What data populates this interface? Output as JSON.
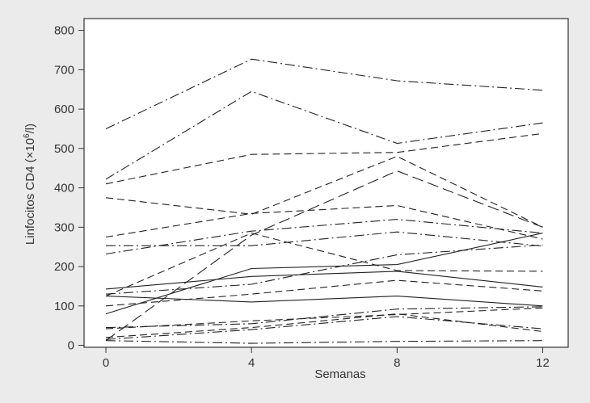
{
  "chart_data": {
    "type": "line",
    "xlabel": "Semanas",
    "ylabel": {
      "prefix": "Linfocitos CD4 (×10",
      "sup": "6",
      "suffix": "/l)"
    },
    "x": [
      0,
      4,
      8,
      12
    ],
    "x_ticks": [
      "0",
      "4",
      "8",
      "12"
    ],
    "y_ticks": [
      "0",
      "100",
      "200",
      "300",
      "400",
      "500",
      "600",
      "700",
      "800"
    ],
    "ylim": [
      -5,
      830
    ],
    "xlim": [
      -0.6,
      12.7
    ],
    "grid": false,
    "legend": "none",
    "series": [
      {
        "values": [
          550,
          727,
          672,
          648
        ],
        "style": "dashdot"
      },
      {
        "values": [
          422,
          645,
          513,
          565
        ],
        "style": "dashdot"
      },
      {
        "values": [
          410,
          485,
          490,
          538
        ],
        "style": "dashed"
      },
      {
        "values": [
          375,
          333,
          480,
          300
        ],
        "style": "dashed"
      },
      {
        "values": [
          12,
          280,
          443,
          300
        ],
        "style": "longdash"
      },
      {
        "values": [
          275,
          335,
          355,
          270
        ],
        "style": "dashed"
      },
      {
        "values": [
          232,
          290,
          320,
          285
        ],
        "style": "dashdot"
      },
      {
        "values": [
          253,
          253,
          288,
          252
        ],
        "style": "dashdot"
      },
      {
        "values": [
          125,
          285,
          190,
          188
        ],
        "style": "dashed"
      },
      {
        "values": [
          80,
          195,
          205,
          285
        ],
        "style": "solid"
      },
      {
        "values": [
          143,
          175,
          188,
          148
        ],
        "style": "solid"
      },
      {
        "values": [
          130,
          155,
          230,
          255
        ],
        "style": "dashdot"
      },
      {
        "values": [
          100,
          130,
          165,
          138
        ],
        "style": "dashed"
      },
      {
        "values": [
          125,
          110,
          125,
          100
        ],
        "style": "solid"
      },
      {
        "values": [
          42,
          62,
          78,
          95
        ],
        "style": "dashed"
      },
      {
        "values": [
          45,
          55,
          92,
          98
        ],
        "style": "dashdot"
      },
      {
        "values": [
          20,
          45,
          80,
          35
        ],
        "style": "dashed"
      },
      {
        "values": [
          15,
          40,
          73,
          42
        ],
        "style": "dashdot"
      },
      {
        "values": [
          12,
          5,
          10,
          12
        ],
        "style": "dashdot"
      }
    ]
  }
}
